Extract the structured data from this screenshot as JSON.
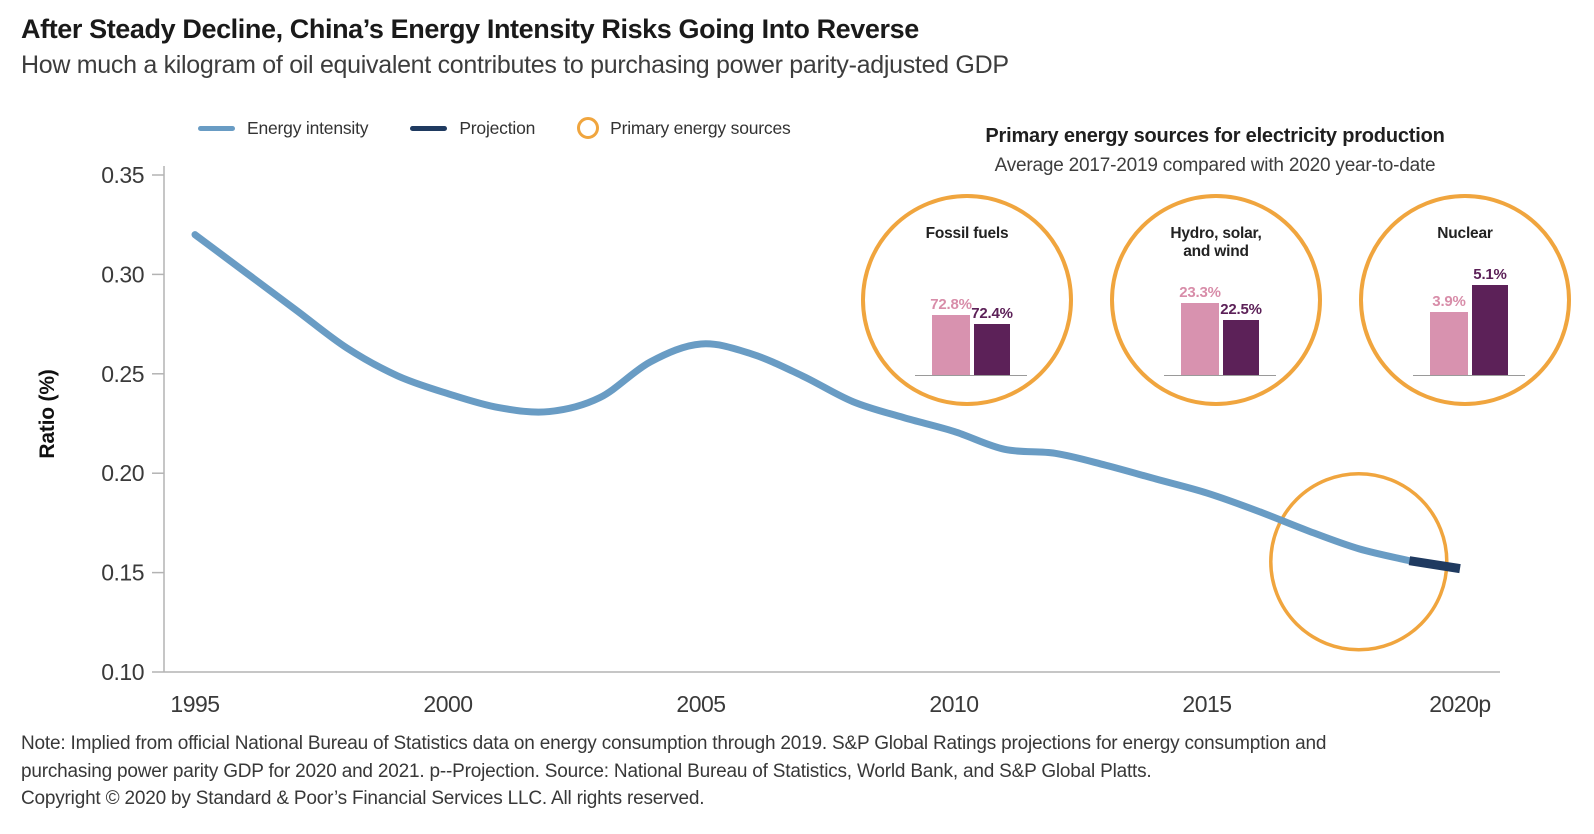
{
  "header": {
    "title": "After Steady Decline, China’s Energy Intensity Risks Going Into Reverse",
    "subtitle": "How much a kilogram of oil equivalent contributes to purchasing power parity-adjusted GDP"
  },
  "legend": {
    "energy_intensity": "Energy intensity",
    "projection": "Projection",
    "primary_sources": "Primary energy sources"
  },
  "colors": {
    "energy_intensity_line": "#699cc4",
    "projection_line": "#1f3a60",
    "highlight_ring": "#f0a53e",
    "avg_2017_2019_bar": "#d892af",
    "ytd_2020_bar": "#5c2158",
    "axis": "#b3b3b3"
  },
  "chart_data": [
    {
      "type": "line",
      "title": "After Steady Decline, China’s Energy Intensity Risks Going Into Reverse",
      "xlabel": "",
      "ylabel": "Ratio (%)",
      "ylim": [
        0.1,
        0.35
      ],
      "y_ticks": [
        0.35,
        0.3,
        0.25,
        0.2,
        0.15,
        0.1
      ],
      "x_ticks": [
        {
          "label": "1995",
          "year": 1995
        },
        {
          "label": "2000",
          "year": 2000
        },
        {
          "label": "2005",
          "year": 2005
        },
        {
          "label": "2010",
          "year": 2010
        },
        {
          "label": "2015",
          "year": 2015
        },
        {
          "label": "2020p",
          "year": 2020
        }
      ],
      "grid": false,
      "legend_position": "top-left",
      "series": [
        {
          "name": "Energy intensity",
          "color": "#699cc4",
          "x": [
            1995,
            1996,
            1997,
            1998,
            1999,
            2000,
            2001,
            2002,
            2003,
            2004,
            2005,
            2006,
            2007,
            2008,
            2009,
            2010,
            2011,
            2012,
            2013,
            2014,
            2015,
            2016,
            2017,
            2018,
            2019
          ],
          "y": [
            0.32,
            0.301,
            0.282,
            0.263,
            0.249,
            0.24,
            0.233,
            0.231,
            0.238,
            0.256,
            0.265,
            0.26,
            0.249,
            0.236,
            0.228,
            0.221,
            0.212,
            0.21,
            0.204,
            0.197,
            0.19,
            0.181,
            0.171,
            0.162,
            0.156
          ]
        },
        {
          "name": "Projection",
          "color": "#1f3a60",
          "x": [
            2019,
            2020
          ],
          "y": [
            0.156,
            0.152
          ]
        }
      ],
      "annotation": {
        "shape": "circle-highlight",
        "center_year": 2018.0,
        "center_value": 0.162
      }
    },
    {
      "type": "bar",
      "title": "Primary energy sources for electricity production",
      "subtitle": "Average 2017-2019 compared with 2020 year-to-date",
      "categories": [
        "Fossil fuels",
        "Hydro, solar, and wind",
        "Nuclear"
      ],
      "series": [
        {
          "name": "Average 2017-2019",
          "values": [
            72.8,
            23.3,
            3.9
          ]
        },
        {
          "name": "2020 year-to-date",
          "values": [
            72.4,
            22.5,
            5.1
          ]
        }
      ],
      "unit": "%"
    }
  ],
  "inset": {
    "title": "Primary energy sources for electricity production",
    "subtitle": "Average 2017-2019 compared with 2020 year-to-date",
    "panels": [
      {
        "title": "Fossil fuels",
        "title_line2": "",
        "values": [
          "72.8%",
          "72.4%"
        ]
      },
      {
        "title": "Hydro, solar,",
        "title_line2": "and wind",
        "values": [
          "23.3%",
          "22.5%"
        ]
      },
      {
        "title": "Nuclear",
        "title_line2": "",
        "values": [
          "3.9%",
          "5.1%"
        ]
      }
    ]
  },
  "footer": {
    "note_line1": "Note: Implied from official National Bureau of Statistics data on energy consumption through 2019. S&P Global Ratings projections for energy consumption and",
    "note_line2": "purchasing power parity GDP for 2020 and 2021. p--Projection. Source: National Bureau of Statistics, World Bank, and S&P Global Platts.",
    "copyright": "Copyright © 2020 by Standard & Poor’s Financial Services LLC. All rights reserved."
  }
}
